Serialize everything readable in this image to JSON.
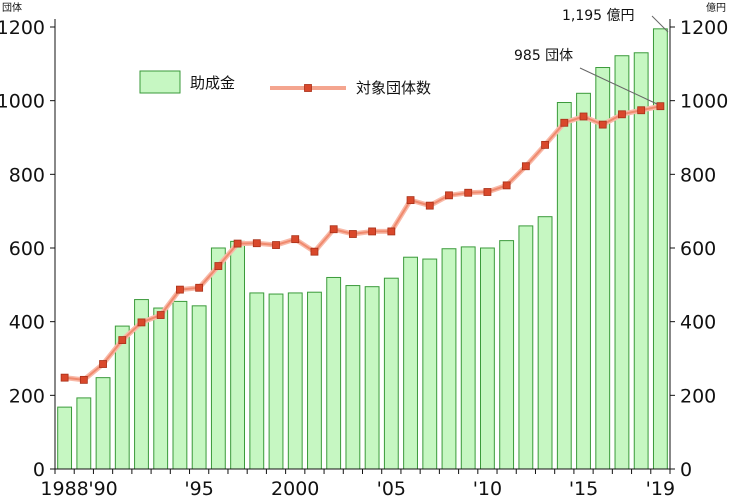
{
  "chart_data": {
    "type": "bar",
    "x": [
      1988,
      1989,
      1990,
      1991,
      1992,
      1993,
      1994,
      1995,
      1996,
      1997,
      1998,
      1999,
      2000,
      2001,
      2002,
      2003,
      2004,
      2005,
      2006,
      2007,
      2008,
      2009,
      2010,
      2011,
      2012,
      2013,
      2014,
      2015,
      2016,
      2017,
      2018,
      2019
    ],
    "x_tick_values": [
      1988,
      1990,
      1995,
      2000,
      2005,
      2010,
      2015,
      2019
    ],
    "x_tick_labels": [
      "1988",
      "'90",
      "'95",
      "2000",
      "'05",
      "'10",
      "'15",
      "'19"
    ],
    "y_left": {
      "unit_label": "団体",
      "ylim": [
        0,
        1200
      ],
      "ticks": [
        0,
        200,
        400,
        600,
        800,
        1000,
        1200
      ]
    },
    "y_right": {
      "unit_label": "億円",
      "ylim": [
        0,
        1200
      ],
      "ticks": [
        0,
        200,
        400,
        600,
        800,
        1000,
        1200
      ]
    },
    "series": [
      {
        "name": "助成金",
        "kind": "bar",
        "color": "#c6f7c2",
        "values": [
          168,
          193,
          248,
          388,
          460,
          437,
          455,
          443,
          600,
          618,
          478,
          475,
          478,
          480,
          520,
          498,
          495,
          518,
          575,
          570,
          598,
          603,
          600,
          620,
          660,
          685,
          995,
          1020,
          1090,
          1122,
          1130,
          1195
        ]
      },
      {
        "name": "対象団体数",
        "kind": "line",
        "color": "#f08a6e",
        "marker_color": "#d9482b",
        "values": [
          248,
          242,
          285,
          350,
          398,
          418,
          487,
          492,
          551,
          612,
          613,
          608,
          624,
          590,
          651,
          638,
          645,
          645,
          730,
          715,
          743,
          750,
          752,
          770,
          822,
          880,
          940,
          957,
          935,
          963,
          974,
          985
        ]
      }
    ],
    "annotations": [
      {
        "text": "1,195 億円",
        "series": "助成金",
        "x": 2019
      },
      {
        "text": "985 団体",
        "series": "対象団体数",
        "x": 2019
      }
    ],
    "grid": false,
    "legend_position": "top-left"
  }
}
